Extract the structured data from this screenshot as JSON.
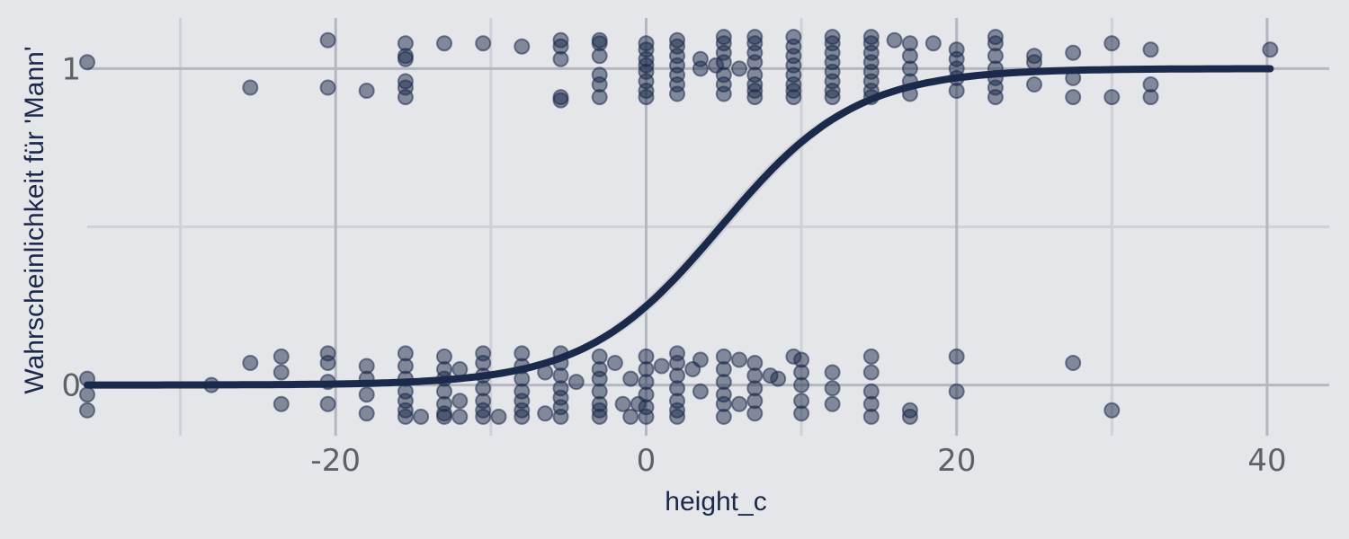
{
  "chart_data": {
    "type": "scatter",
    "title": "",
    "xlabel": "height_c",
    "ylabel": "Wahrscheinlichkeit für 'Mann'",
    "xlim": [
      -36,
      44
    ],
    "ylim": [
      -0.16,
      1.16
    ],
    "x_ticks": [
      -20,
      0,
      20,
      40
    ],
    "x_tick_labels": [
      "-20",
      "0",
      "20",
      "40"
    ],
    "y_ticks": [
      0,
      1
    ],
    "y_tick_labels": [
      "0",
      "1"
    ],
    "grid": true,
    "legend": "none",
    "colors": {
      "background": "#e5e6ea",
      "grid_major": "#b4b7c0",
      "grid_minor": "#cfd1d7",
      "points": "#1b2a4a",
      "curve": "#1b2a4a",
      "ribbon": "#c9ccd3"
    },
    "fit": {
      "type": "logistic",
      "x_range": [
        -36,
        40.2
      ],
      "midpoint": 4.8,
      "slope": 0.23
    },
    "series": [
      {
        "y_group": 0,
        "x": [
          -36,
          -36,
          -36,
          -28,
          -25.5,
          -23.5,
          -23.5,
          -23.5,
          -20.5,
          -20.5,
          -20.5,
          -20.5,
          -18,
          -18,
          -18,
          -18,
          -15.5,
          -15.5,
          -15.5,
          -15.5,
          -15.5,
          -15.5,
          -15.5,
          -14.5,
          -13,
          -13,
          -13,
          -13,
          -13,
          -13,
          -13,
          -12,
          -12,
          -12,
          -10.5,
          -10.5,
          -10.5,
          -10.5,
          -10.5,
          -10.5,
          -10.5,
          -9.5,
          -8,
          -8,
          -8,
          -8,
          -8,
          -8,
          -8,
          -6.5,
          -6.5,
          -5.5,
          -5.5,
          -5.5,
          -5.5,
          -5.5,
          -5.5,
          -5.5,
          -4.5,
          -3,
          -3,
          -3,
          -3,
          -3,
          -3,
          -3,
          -2,
          -1.5,
          -1,
          -1,
          -0.5,
          0,
          0,
          0,
          0,
          0,
          0,
          1,
          2,
          2,
          2,
          2,
          2,
          2,
          2,
          3,
          3.5,
          3.5,
          5,
          5,
          5,
          5,
          5,
          5,
          6,
          6,
          7,
          7,
          7,
          7,
          7,
          8,
          8.5,
          9.5,
          10,
          10,
          10,
          10,
          10,
          12,
          12,
          12,
          14.5,
          14.5,
          14.5,
          14.5,
          14.5,
          17,
          17,
          20,
          20,
          27.5,
          30
        ],
        "y": [
          0.02,
          -0.03,
          -0.08,
          0,
          0.07,
          0.09,
          0.04,
          -0.06,
          0.1,
          0.07,
          0.01,
          -0.06,
          0.06,
          0.02,
          -0.03,
          -0.09,
          0.1,
          0.06,
          0.02,
          -0.02,
          -0.05,
          -0.08,
          -0.1,
          -0.1,
          0.09,
          0.05,
          0.02,
          -0.02,
          -0.06,
          -0.09,
          -0.1,
          0.05,
          -0.05,
          -0.1,
          0.1,
          0.07,
          0.03,
          -0.01,
          -0.05,
          -0.08,
          -0.1,
          -0.1,
          0.1,
          0.06,
          0.02,
          -0.02,
          -0.05,
          -0.08,
          -0.1,
          0.04,
          -0.09,
          0.1,
          0.07,
          0.03,
          -0.01,
          -0.04,
          -0.07,
          -0.1,
          0.01,
          0.09,
          0.05,
          0.02,
          -0.02,
          -0.06,
          -0.08,
          -0.1,
          0.07,
          -0.06,
          -0.1,
          0.02,
          -0.06,
          0.09,
          0.05,
          0.01,
          -0.03,
          -0.07,
          -0.1,
          0.06,
          0.1,
          0.07,
          0.03,
          -0.01,
          -0.05,
          -0.08,
          -0.1,
          0.05,
          0.08,
          -0.02,
          0.09,
          0.05,
          0.01,
          -0.03,
          -0.06,
          -0.1,
          0.08,
          -0.06,
          0.07,
          0.03,
          -0.01,
          -0.05,
          -0.09,
          0.03,
          0.02,
          0.09,
          0.08,
          0.04,
          0,
          -0.05,
          -0.09,
          0.04,
          -0.01,
          -0.06,
          0.09,
          0.04,
          -0.02,
          -0.06,
          -0.1,
          -0.08,
          -0.1,
          0.09,
          -0.02,
          0.07,
          -0.08
        ]
      },
      {
        "y_group": 1,
        "x": [
          -36,
          -25.5,
          -20.5,
          -20.5,
          -18,
          -15.5,
          -15.5,
          -15.5,
          -15.5,
          -15.5,
          -15.5,
          -13,
          -10.5,
          -8,
          -5.5,
          -5.5,
          -5.5,
          -5.5,
          -5.5,
          -3,
          -3,
          -3,
          -3,
          -3,
          -3,
          0,
          0,
          0,
          0,
          0,
          0,
          0,
          0,
          2,
          2,
          2,
          2,
          2,
          2,
          2,
          3.5,
          3.5,
          4.5,
          5,
          5,
          5,
          5,
          5,
          5,
          5,
          6,
          7,
          7,
          7,
          7,
          7,
          7,
          7,
          7,
          9.5,
          9.5,
          9.5,
          9.5,
          9.5,
          9.5,
          9.5,
          9.5,
          12,
          12,
          12,
          12,
          12,
          12,
          12,
          12,
          14.5,
          14.5,
          14.5,
          14.5,
          14.5,
          14.5,
          14.5,
          14.5,
          16,
          17,
          17,
          17,
          17,
          17,
          18.5,
          20,
          20,
          20,
          20,
          20,
          22.5,
          22.5,
          22.5,
          22.5,
          22.5,
          22.5,
          22.5,
          25,
          25,
          25,
          27.5,
          27.5,
          27.5,
          30,
          30,
          32.5,
          32.5,
          32.5,
          40.2
        ],
        "y": [
          1.02,
          0.94,
          1.09,
          0.94,
          0.93,
          1.08,
          1.04,
          1.03,
          0.96,
          0.94,
          0.91,
          1.08,
          1.08,
          1.07,
          1.09,
          1.07,
          1.03,
          0.91,
          0.9,
          1.09,
          1.08,
          1.04,
          0.98,
          0.95,
          0.91,
          1.08,
          1.06,
          1.03,
          1.01,
          0.99,
          0.96,
          0.93,
          0.91,
          1.09,
          1.07,
          1.04,
          1.01,
          0.98,
          0.95,
          0.92,
          1.03,
          1.0,
          1.01,
          1.1,
          1.08,
          1.05,
          1.02,
          0.98,
          0.95,
          0.92,
          1.0,
          1.1,
          1.08,
          1.05,
          1.02,
          0.98,
          0.95,
          0.93,
          0.91,
          1.1,
          1.07,
          1.04,
          1.01,
          0.98,
          0.95,
          0.93,
          0.91,
          1.1,
          1.08,
          1.05,
          1.02,
          0.99,
          0.96,
          0.93,
          0.91,
          1.1,
          1.08,
          1.05,
          1.02,
          0.99,
          0.96,
          0.93,
          0.91,
          1.09,
          1.08,
          1.04,
          1.0,
          0.96,
          0.92,
          1.08,
          1.06,
          1.03,
          1.0,
          0.97,
          0.93,
          1.1,
          1.08,
          1.04,
          1.0,
          0.97,
          0.94,
          0.91,
          1.04,
          1.02,
          0.95,
          1.05,
          0.97,
          0.91,
          1.08,
          0.91,
          1.06,
          0.95,
          0.91,
          1.06
        ]
      }
    ]
  }
}
